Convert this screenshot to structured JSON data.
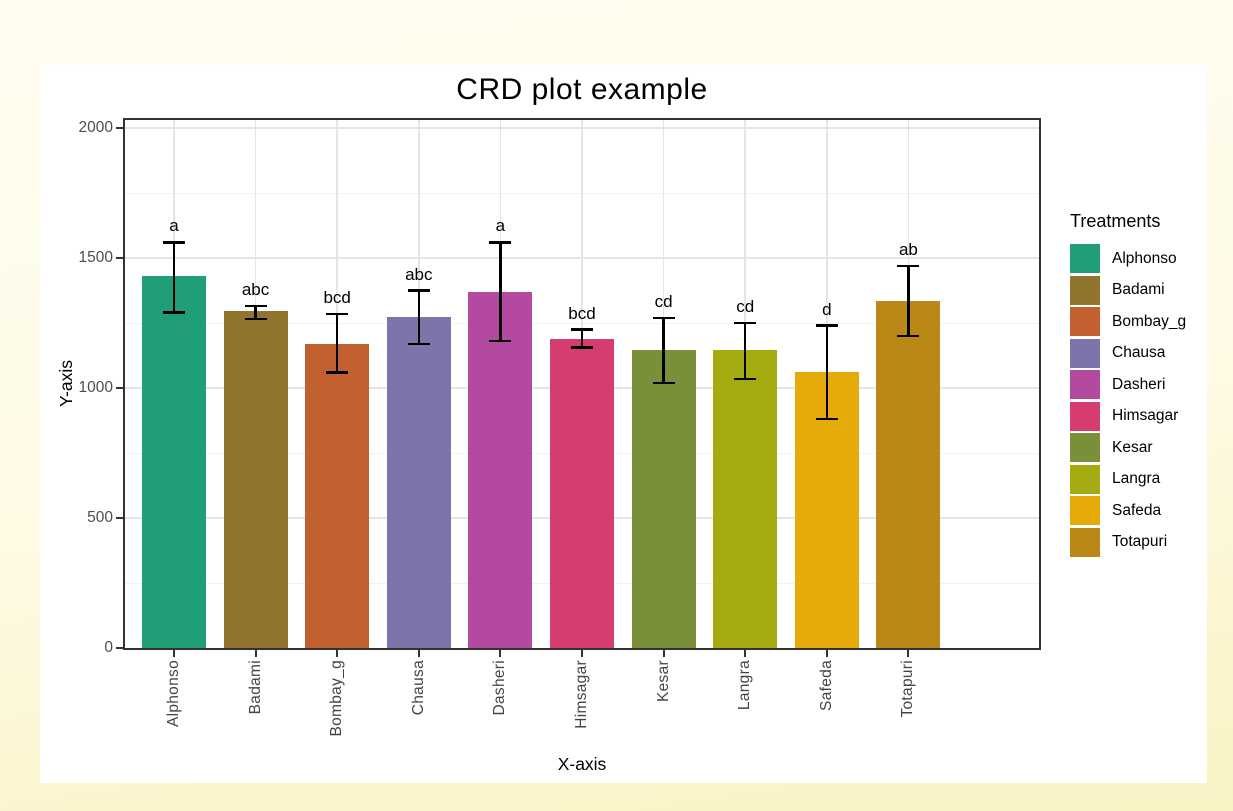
{
  "chart_data": {
    "type": "bar",
    "title": "CRD plot example",
    "xlabel": "X-axis",
    "ylabel": "Y-axis",
    "ylim": [
      0,
      2000
    ],
    "y_major_ticks": [
      0,
      500,
      1000,
      1500,
      2000
    ],
    "y_minor_gridlines": [
      250,
      750,
      1250,
      1750
    ],
    "grid": true,
    "legend_title": "Treatments",
    "legend_position": "right",
    "categories": [
      "Alphonso",
      "Badami",
      "Bombay_g",
      "Chausa",
      "Dasheri",
      "Himsagar",
      "Kesar",
      "Langra",
      "Safeda",
      "Totapuri"
    ],
    "values": [
      1430,
      1295,
      1170,
      1275,
      1370,
      1190,
      1145,
      1145,
      1060,
      1335
    ],
    "error_low": [
      1290,
      1265,
      1060,
      1170,
      1180,
      1155,
      1020,
      1035,
      880,
      1200
    ],
    "error_high": [
      1560,
      1315,
      1285,
      1375,
      1560,
      1225,
      1270,
      1250,
      1240,
      1470
    ],
    "sig_letters": [
      "a",
      "abc",
      "bcd",
      "abc",
      "a",
      "bcd",
      "cd",
      "cd",
      "d",
      "ab"
    ],
    "colors": [
      "#1F9E78",
      "#91752E",
      "#C2612F",
      "#7E74A9",
      "#B34A9F",
      "#D53C6F",
      "#798F38",
      "#A4AB11",
      "#E7AB09",
      "#B98816"
    ]
  }
}
